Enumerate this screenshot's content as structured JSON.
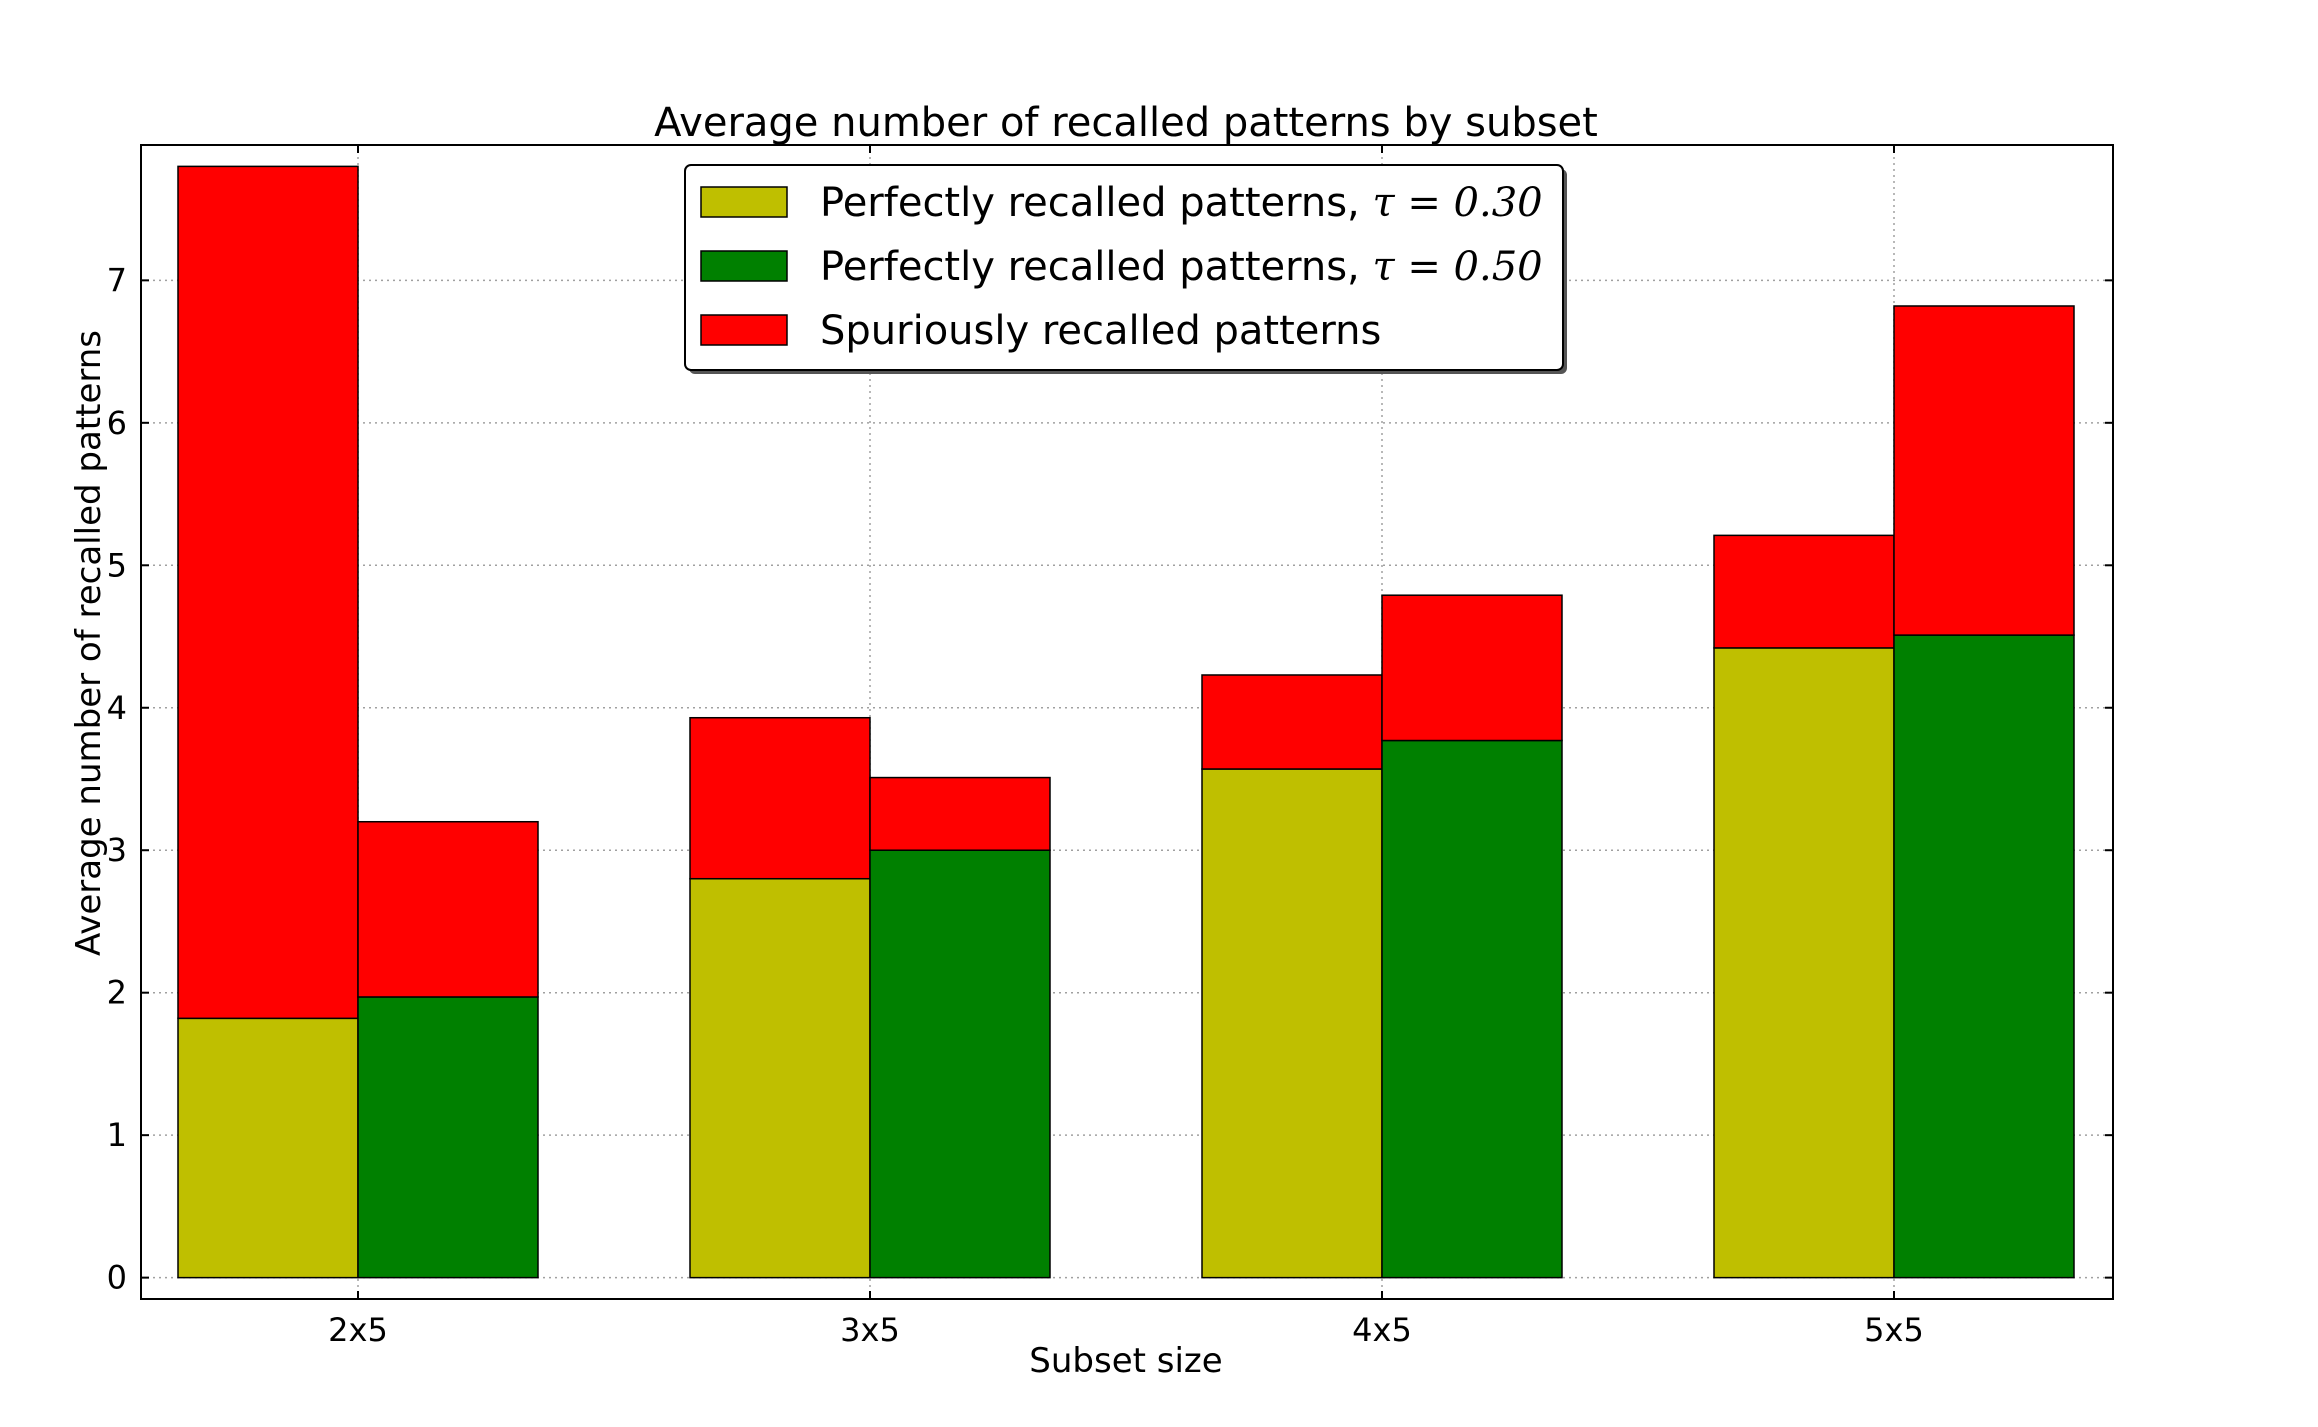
{
  "chart_data": {
    "type": "bar",
    "stacked": true,
    "grouped": true,
    "title": "Average number of recalled patterns by subset",
    "xlabel": "Subset size",
    "ylabel": "Average number of recalled patterns",
    "categories": [
      "2x5",
      "3x5",
      "4x5",
      "5x5"
    ],
    "ylim": [
      -0.15,
      7.95
    ],
    "yticks": [
      0,
      1,
      2,
      3,
      4,
      5,
      6,
      7
    ],
    "grid": true,
    "legend_position": "top-center",
    "groups": [
      {
        "tau": "0.30",
        "perfect_color": "#bfbf00",
        "perfect": [
          1.82,
          2.8,
          3.57,
          4.42
        ],
        "spurious": [
          5.98,
          1.13,
          0.66,
          0.79
        ]
      },
      {
        "tau": "0.50",
        "perfect_color": "#008000",
        "perfect": [
          1.97,
          3.0,
          3.77,
          4.51
        ],
        "spurious": [
          1.23,
          0.51,
          1.02,
          2.31
        ]
      }
    ],
    "spurious_color": "#ff0000",
    "legend": [
      {
        "text": "Perfectly recalled patterns, ",
        "math": "τ = 0.30",
        "color": "#bfbf00"
      },
      {
        "text": "Perfectly recalled patterns, ",
        "math": "τ = 0.50",
        "color": "#008000"
      },
      {
        "text": "Spuriously recalled patterns",
        "math": "",
        "color": "#ff0000"
      }
    ]
  }
}
